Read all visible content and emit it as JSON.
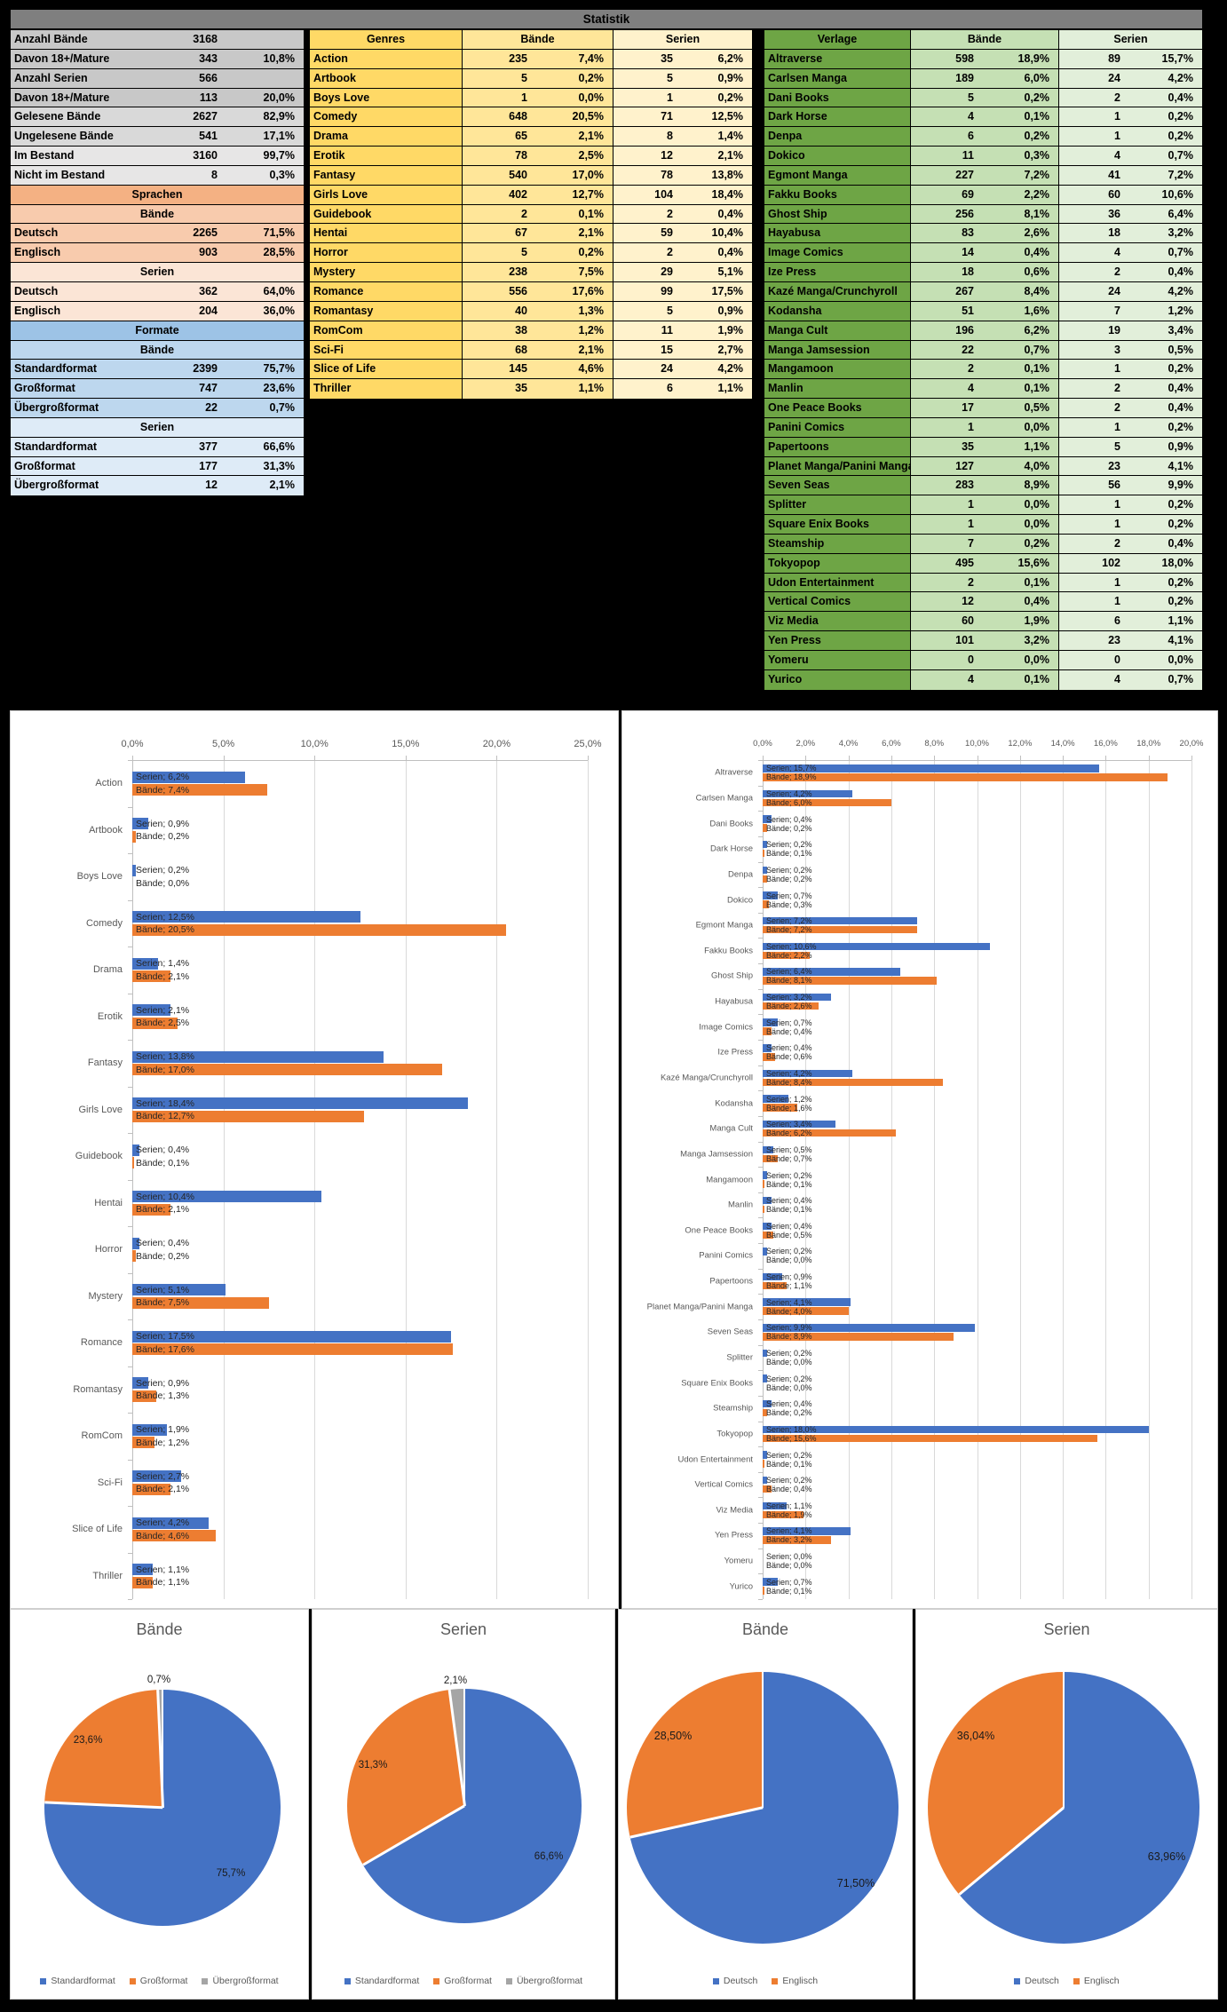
{
  "title": "Statistik",
  "colors": {
    "blue": "#4472C4",
    "orange": "#ED7D31",
    "gray": "#A5A5A5"
  },
  "stats_table": {
    "rows": [
      {
        "label": "Anzahl Bände",
        "value": "3168",
        "pct": "",
        "bg": "gA"
      },
      {
        "label": "Davon 18+/Mature",
        "value": "343",
        "pct": "10,8%",
        "bg": "gA"
      },
      {
        "label": "Anzahl Serien",
        "value": "566",
        "pct": "",
        "bg": "gA"
      },
      {
        "label": "Davon 18+/Mature",
        "value": "113",
        "pct": "20,0%",
        "bg": "gA"
      },
      {
        "label": "Gelesene Bände",
        "value": "2627",
        "pct": "82,9%",
        "bg": "gB"
      },
      {
        "label": "Ungelesene Bände",
        "value": "541",
        "pct": "17,1%",
        "bg": "gB"
      },
      {
        "label": "Im Bestand",
        "value": "3160",
        "pct": "99,7%",
        "bg": "gC"
      },
      {
        "label": "Nicht im Bestand",
        "value": "8",
        "pct": "0,3%",
        "bg": "gC"
      },
      {
        "header": "Sprachen",
        "bg": "hOrange"
      },
      {
        "header": "Bände",
        "bg": "rOrangeD"
      },
      {
        "label": "Deutsch",
        "value": "2265",
        "pct": "71,5%",
        "bg": "rOrangeD"
      },
      {
        "label": "Englisch",
        "value": "903",
        "pct": "28,5%",
        "bg": "rOrangeD"
      },
      {
        "header": "Serien",
        "bg": "rOrangeL"
      },
      {
        "label": "Deutsch",
        "value": "362",
        "pct": "64,0%",
        "bg": "rOrangeL"
      },
      {
        "label": "Englisch",
        "value": "204",
        "pct": "36,0%",
        "bg": "rOrangeL"
      },
      {
        "header": "Formate",
        "bg": "hBlue"
      },
      {
        "header": "Bände",
        "bg": "rBlueD"
      },
      {
        "label": "Standardformat",
        "value": "2399",
        "pct": "75,7%",
        "bg": "rBlueD"
      },
      {
        "label": "Großformat",
        "value": "747",
        "pct": "23,6%",
        "bg": "rBlueD"
      },
      {
        "label": "Übergroßformat",
        "value": "22",
        "pct": "0,7%",
        "bg": "rBlueD"
      },
      {
        "header": "Serien",
        "bg": "rBlueL"
      },
      {
        "label": "Standardformat",
        "value": "377",
        "pct": "66,6%",
        "bg": "rBlueL"
      },
      {
        "label": "Großformat",
        "value": "177",
        "pct": "31,3%",
        "bg": "rBlueL"
      },
      {
        "label": "Übergroßformat",
        "value": "12",
        "pct": "2,1%",
        "bg": "rBlueL"
      }
    ]
  },
  "genres_table": {
    "header": {
      "name": "Genres",
      "baende": "Bände",
      "serien": "Serien"
    },
    "rows": [
      [
        "Action",
        "235",
        "7,4%",
        "35",
        "6,2%"
      ],
      [
        "Artbook",
        "5",
        "0,2%",
        "5",
        "0,9%"
      ],
      [
        "Boys Love",
        "1",
        "0,0%",
        "1",
        "0,2%"
      ],
      [
        "Comedy",
        "648",
        "20,5%",
        "71",
        "12,5%"
      ],
      [
        "Drama",
        "65",
        "2,1%",
        "8",
        "1,4%"
      ],
      [
        "Erotik",
        "78",
        "2,5%",
        "12",
        "2,1%"
      ],
      [
        "Fantasy",
        "540",
        "17,0%",
        "78",
        "13,8%"
      ],
      [
        "Girls Love",
        "402",
        "12,7%",
        "104",
        "18,4%"
      ],
      [
        "Guidebook",
        "2",
        "0,1%",
        "2",
        "0,4%"
      ],
      [
        "Hentai",
        "67",
        "2,1%",
        "59",
        "10,4%"
      ],
      [
        "Horror",
        "5",
        "0,2%",
        "2",
        "0,4%"
      ],
      [
        "Mystery",
        "238",
        "7,5%",
        "29",
        "5,1%"
      ],
      [
        "Romance",
        "556",
        "17,6%",
        "99",
        "17,5%"
      ],
      [
        "Romantasy",
        "40",
        "1,3%",
        "5",
        "0,9%"
      ],
      [
        "RomCom",
        "38",
        "1,2%",
        "11",
        "1,9%"
      ],
      [
        "Sci-Fi",
        "68",
        "2,1%",
        "15",
        "2,7%"
      ],
      [
        "Slice of Life",
        "145",
        "4,6%",
        "24",
        "4,2%"
      ],
      [
        "Thriller",
        "35",
        "1,1%",
        "6",
        "1,1%"
      ]
    ]
  },
  "verlage_table": {
    "header": {
      "name": "Verlage",
      "baende": "Bände",
      "serien": "Serien"
    },
    "rows": [
      [
        "Altraverse",
        "598",
        "18,9%",
        "89",
        "15,7%"
      ],
      [
        "Carlsen Manga",
        "189",
        "6,0%",
        "24",
        "4,2%"
      ],
      [
        "Dani Books",
        "5",
        "0,2%",
        "2",
        "0,4%"
      ],
      [
        "Dark Horse",
        "4",
        "0,1%",
        "1",
        "0,2%"
      ],
      [
        "Denpa",
        "6",
        "0,2%",
        "1",
        "0,2%"
      ],
      [
        "Dokico",
        "11",
        "0,3%",
        "4",
        "0,7%"
      ],
      [
        "Egmont Manga",
        "227",
        "7,2%",
        "41",
        "7,2%"
      ],
      [
        "Fakku Books",
        "69",
        "2,2%",
        "60",
        "10,6%"
      ],
      [
        "Ghost Ship",
        "256",
        "8,1%",
        "36",
        "6,4%"
      ],
      [
        "Hayabusa",
        "83",
        "2,6%",
        "18",
        "3,2%"
      ],
      [
        "Image Comics",
        "14",
        "0,4%",
        "4",
        "0,7%"
      ],
      [
        "Ize Press",
        "18",
        "0,6%",
        "2",
        "0,4%"
      ],
      [
        "Kazé Manga/Crunchyroll",
        "267",
        "8,4%",
        "24",
        "4,2%"
      ],
      [
        "Kodansha",
        "51",
        "1,6%",
        "7",
        "1,2%"
      ],
      [
        "Manga Cult",
        "196",
        "6,2%",
        "19",
        "3,4%"
      ],
      [
        "Manga Jamsession",
        "22",
        "0,7%",
        "3",
        "0,5%"
      ],
      [
        "Mangamoon",
        "2",
        "0,1%",
        "1",
        "0,2%"
      ],
      [
        "Manlin",
        "4",
        "0,1%",
        "2",
        "0,4%"
      ],
      [
        "One Peace Books",
        "17",
        "0,5%",
        "2",
        "0,4%"
      ],
      [
        "Panini Comics",
        "1",
        "0,0%",
        "1",
        "0,2%"
      ],
      [
        "Papertoons",
        "35",
        "1,1%",
        "5",
        "0,9%"
      ],
      [
        "Planet Manga/Panini Manga",
        "127",
        "4,0%",
        "23",
        "4,1%"
      ],
      [
        "Seven Seas",
        "283",
        "8,9%",
        "56",
        "9,9%"
      ],
      [
        "Splitter",
        "1",
        "0,0%",
        "1",
        "0,2%"
      ],
      [
        "Square Enix Books",
        "1",
        "0,0%",
        "1",
        "0,2%"
      ],
      [
        "Steamship",
        "7",
        "0,2%",
        "2",
        "0,4%"
      ],
      [
        "Tokyopop",
        "495",
        "15,6%",
        "102",
        "18,0%"
      ],
      [
        "Udon Entertainment",
        "2",
        "0,1%",
        "1",
        "0,2%"
      ],
      [
        "Vertical Comics",
        "12",
        "0,4%",
        "1",
        "0,2%"
      ],
      [
        "Viz Media",
        "60",
        "1,9%",
        "6",
        "1,1%"
      ],
      [
        "Yen Press",
        "101",
        "3,2%",
        "23",
        "4,1%"
      ],
      [
        "Yomeru",
        "0",
        "0,0%",
        "0",
        "0,0%"
      ],
      [
        "Yurico",
        "4",
        "0,1%",
        "4",
        "0,7%"
      ]
    ]
  },
  "chart_data": [
    {
      "type": "bar",
      "id": "genres-bars",
      "title": "",
      "xlabel": "",
      "ylabel": "",
      "xlim": [
        0,
        25
      ],
      "tick_step": 5,
      "grid": true,
      "value_axis_position": "top",
      "ticks": [
        "0,0%",
        "5,0%",
        "10,0%",
        "15,0%",
        "20,0%",
        "25,0%"
      ],
      "categories": [
        "Action",
        "Artbook",
        "Boys Love",
        "Comedy",
        "Drama",
        "Erotik",
        "Fantasy",
        "Girls Love",
        "Guidebook",
        "Hentai",
        "Horror",
        "Mystery",
        "Romance",
        "Romantasy",
        "RomCom",
        "Sci-Fi",
        "Slice of Life",
        "Thriller"
      ],
      "series": [
        {
          "name": "Serien",
          "color_key": "blue",
          "values": [
            6.2,
            0.9,
            0.2,
            12.5,
            1.4,
            2.1,
            13.8,
            18.4,
            0.4,
            10.4,
            0.4,
            5.1,
            17.5,
            0.9,
            1.9,
            2.7,
            4.2,
            1.1
          ],
          "labels": [
            "6,2%",
            "0,9%",
            "0,2%",
            "12,5%",
            "1,4%",
            "2,1%",
            "13,8%",
            "18,4%",
            "0,4%",
            "10,4%",
            "0,4%",
            "5,1%",
            "17,5%",
            "0,9%",
            "1,9%",
            "2,7%",
            "4,2%",
            "1,1%"
          ]
        },
        {
          "name": "Bände",
          "color_key": "orange",
          "values": [
            7.4,
            0.2,
            0.0,
            20.5,
            2.1,
            2.5,
            17.0,
            12.7,
            0.1,
            2.1,
            0.2,
            7.5,
            17.6,
            1.3,
            1.2,
            2.1,
            4.6,
            1.1
          ],
          "labels": [
            "7,4%",
            "0,2%",
            "0,0%",
            "20,5%",
            "2,1%",
            "2,5%",
            "17,0%",
            "12,7%",
            "0,1%",
            "2,1%",
            "0,2%",
            "7,5%",
            "17,6%",
            "1,3%",
            "1,2%",
            "2,1%",
            "4,6%",
            "1,1%"
          ]
        }
      ]
    },
    {
      "type": "bar",
      "id": "verlage-bars",
      "title": "",
      "xlabel": "",
      "ylabel": "",
      "xlim": [
        0,
        20
      ],
      "tick_step": 2,
      "grid": true,
      "value_axis_position": "top",
      "ticks": [
        "0,0%",
        "2,0%",
        "4,0%",
        "6,0%",
        "8,0%",
        "10,0%",
        "12,0%",
        "14,0%",
        "16,0%",
        "18,0%",
        "20,0%"
      ],
      "categories": [
        "Altraverse",
        "Carlsen Manga",
        "Dani Books",
        "Dark Horse",
        "Denpa",
        "Dokico",
        "Egmont Manga",
        "Fakku Books",
        "Ghost Ship",
        "Hayabusa",
        "Image Comics",
        "Ize Press",
        "Kazé Manga/Crunchyroll",
        "Kodansha",
        "Manga Cult",
        "Manga Jamsession",
        "Mangamoon",
        "Manlin",
        "One Peace Books",
        "Panini Comics",
        "Papertoons",
        "Planet Manga/Panini Manga",
        "Seven Seas",
        "Splitter",
        "Square Enix Books",
        "Steamship",
        "Tokyopop",
        "Udon Entertainment",
        "Vertical Comics",
        "Viz Media",
        "Yen Press",
        "Yomeru",
        "Yurico"
      ],
      "series": [
        {
          "name": "Serien",
          "color_key": "blue",
          "values": [
            15.7,
            4.2,
            0.4,
            0.2,
            0.2,
            0.7,
            7.2,
            10.6,
            6.4,
            3.2,
            0.7,
            0.4,
            4.2,
            1.2,
            3.4,
            0.5,
            0.2,
            0.4,
            0.4,
            0.2,
            0.9,
            4.1,
            9.9,
            0.2,
            0.2,
            0.4,
            18.0,
            0.2,
            0.2,
            1.1,
            4.1,
            0.0,
            0.7
          ],
          "labels": [
            "15,7%",
            "4,2%",
            "0,4%",
            "0,2%",
            "0,2%",
            "0,7%",
            "7,2%",
            "10,6%",
            "6,4%",
            "3,2%",
            "0,7%",
            "0,4%",
            "4,2%",
            "1,2%",
            "3,4%",
            "0,5%",
            "0,2%",
            "0,4%",
            "0,4%",
            "0,2%",
            "0,9%",
            "4,1%",
            "9,9%",
            "0,2%",
            "0,2%",
            "0,4%",
            "18,0%",
            "0,2%",
            "0,2%",
            "1,1%",
            "4,1%",
            "0,0%",
            "0,7%"
          ]
        },
        {
          "name": "Bände",
          "color_key": "orange",
          "values": [
            18.9,
            6.0,
            0.2,
            0.1,
            0.2,
            0.3,
            7.2,
            2.2,
            8.1,
            2.6,
            0.4,
            0.6,
            8.4,
            1.6,
            6.2,
            0.7,
            0.1,
            0.1,
            0.5,
            0.0,
            1.1,
            4.0,
            8.9,
            0.0,
            0.0,
            0.2,
            15.6,
            0.1,
            0.4,
            1.9,
            3.2,
            0.0,
            0.1
          ],
          "labels": [
            "18,9%",
            "6,0%",
            "0,2%",
            "0,1%",
            "0,2%",
            "0,3%",
            "7,2%",
            "2,2%",
            "8,1%",
            "2,6%",
            "0,4%",
            "0,6%",
            "8,4%",
            "1,6%",
            "6,2%",
            "0,7%",
            "0,1%",
            "0,1%",
            "0,5%",
            "0,0%",
            "1,1%",
            "4,0%",
            "8,9%",
            "0,0%",
            "0,0%",
            "0,2%",
            "15,6%",
            "0,1%",
            "0,4%",
            "1,9%",
            "3,2%",
            "0,0%",
            "0,1%"
          ]
        }
      ]
    },
    {
      "type": "pie",
      "id": "formate-baende-pie",
      "title": "Bände",
      "slices": [
        {
          "label": "Standardformat",
          "value": 75.7,
          "text": "75,7%",
          "color_key": "blue"
        },
        {
          "label": "Großformat",
          "value": 23.6,
          "text": "23,6%",
          "color_key": "orange"
        },
        {
          "label": "Übergroßformat",
          "value": 0.7,
          "text": "0,7%",
          "color_key": "gray"
        }
      ],
      "legend": [
        {
          "label": "Standardformat",
          "color_key": "blue"
        },
        {
          "label": "Großformat",
          "color_key": "orange"
        },
        {
          "label": "Übergroßformat",
          "color_key": "gray"
        }
      ]
    },
    {
      "type": "pie",
      "id": "formate-serien-pie",
      "title": "Serien",
      "slices": [
        {
          "label": "Standardformat",
          "value": 66.6,
          "text": "66,6%",
          "color_key": "blue"
        },
        {
          "label": "Großformat",
          "value": 31.3,
          "text": "31,3%",
          "color_key": "orange"
        },
        {
          "label": "Übergroßformat",
          "value": 2.1,
          "text": "2,1%",
          "color_key": "gray"
        }
      ],
      "legend": [
        {
          "label": "Standardformat",
          "color_key": "blue"
        },
        {
          "label": "Großformat",
          "color_key": "orange"
        },
        {
          "label": "Übergroßformat",
          "color_key": "gray"
        }
      ]
    },
    {
      "type": "pie",
      "id": "sprachen-baende-pie",
      "title": "Bände",
      "slices": [
        {
          "label": "Deutsch",
          "value": 71.5,
          "text": "71,50%",
          "color_key": "blue"
        },
        {
          "label": "Englisch",
          "value": 28.5,
          "text": "28,50%",
          "color_key": "orange"
        }
      ],
      "legend": [
        {
          "label": "Deutsch",
          "color_key": "blue"
        },
        {
          "label": "Englisch",
          "color_key": "orange"
        }
      ]
    },
    {
      "type": "pie",
      "id": "sprachen-serien-pie",
      "title": "Serien",
      "slices": [
        {
          "label": "Deutsch",
          "value": 63.96,
          "text": "63,96%",
          "color_key": "blue"
        },
        {
          "label": "Englisch",
          "value": 36.04,
          "text": "36,04%",
          "color_key": "orange"
        }
      ],
      "legend": [
        {
          "label": "Deutsch",
          "color_key": "blue"
        },
        {
          "label": "Englisch",
          "color_key": "orange"
        }
      ]
    }
  ]
}
